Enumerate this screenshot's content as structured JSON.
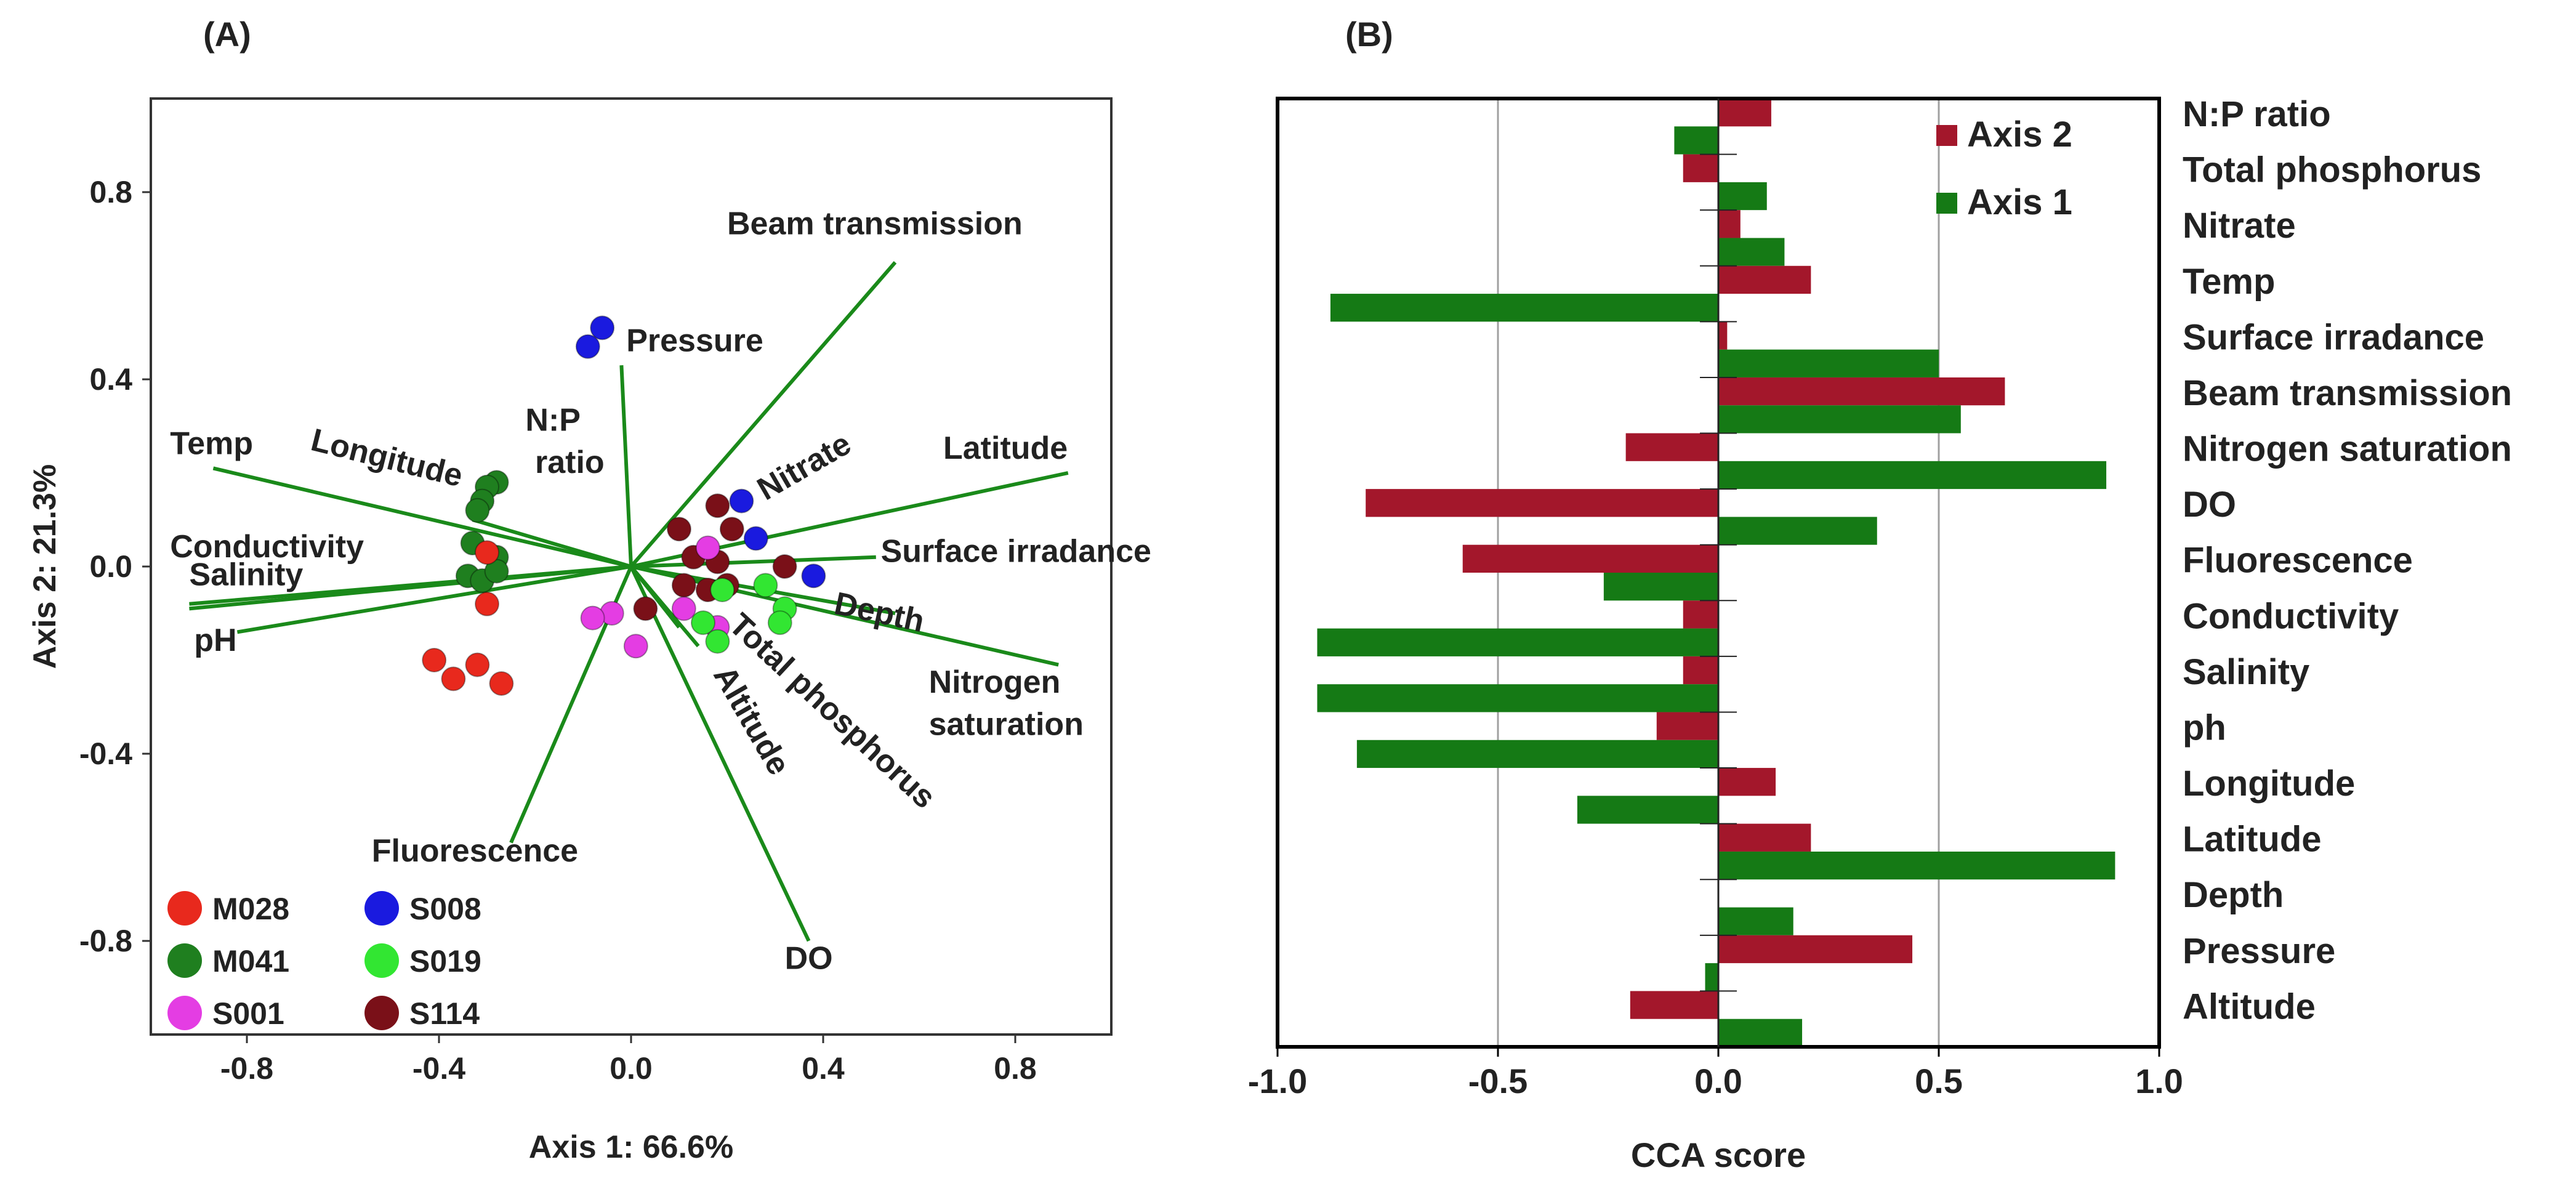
{
  "colors": {
    "arrow": "#1a8a1a",
    "axis1": "#157a15",
    "axis2": "#a3172b",
    "gridline": "#a0a0a0",
    "M028": "#e8291d",
    "M041": "#1f7f1f",
    "S001": "#e43de3",
    "S008": "#1a1adf",
    "S019": "#32e632",
    "S114": "#7a1018"
  },
  "chart_data": [
    {
      "panel_label": "(A)",
      "type": "scatter",
      "subtype": "CCA biplot",
      "xlabel": "Axis 1: 66.6%",
      "ylabel": "Axis 2: 21.3%",
      "xlim": [
        -1.0,
        1.0
      ],
      "ylim": [
        -1.0,
        1.0
      ],
      "xticks": [
        -0.8,
        -0.4,
        0.0,
        0.4,
        0.8
      ],
      "xtick_labels": [
        "-0.8",
        "-0.4",
        "0.0",
        "0.4",
        "0.8"
      ],
      "yticks": [
        -0.8,
        -0.4,
        0.0,
        0.4,
        0.8
      ],
      "ytick_labels": [
        "-0.8",
        "-0.4",
        "0.0",
        "0.4",
        "0.8"
      ],
      "legend": [
        {
          "key": "M028",
          "label": "M028"
        },
        {
          "key": "M041",
          "label": "M041"
        },
        {
          "key": "S001",
          "label": "S001"
        },
        {
          "key": "S008",
          "label": "S008"
        },
        {
          "key": "S019",
          "label": "S019"
        },
        {
          "key": "S114",
          "label": "S114"
        }
      ],
      "vectors": [
        {
          "name": "beam-transmission",
          "x": 0.55,
          "y": 0.65
        },
        {
          "name": "pressure",
          "x": -0.02,
          "y": 0.43
        },
        {
          "name": "latitude",
          "x": 0.91,
          "y": 0.2
        },
        {
          "name": "surface-irradance",
          "x": 0.51,
          "y": 0.02
        },
        {
          "name": "depth",
          "x": 0.55,
          "y": -0.1
        },
        {
          "name": "nitrogen-saturation",
          "x": 0.89,
          "y": -0.21
        },
        {
          "name": "total-phosphorus",
          "x": 0.14,
          "y": -0.17
        },
        {
          "name": "altitude",
          "x": 0.1,
          "y": -0.13
        },
        {
          "name": "do",
          "x": 0.37,
          "y": -0.8
        },
        {
          "name": "fluorescence",
          "x": -0.25,
          "y": -0.59
        },
        {
          "name": "temp",
          "x": -0.87,
          "y": 0.21
        },
        {
          "name": "longitude",
          "x": -0.33,
          "y": 0.1
        },
        {
          "name": "conductivity",
          "x": -0.92,
          "y": -0.08
        },
        {
          "name": "salinity",
          "x": -0.92,
          "y": -0.09
        },
        {
          "name": "ph",
          "x": -0.82,
          "y": -0.14
        }
      ],
      "vector_labels": [
        {
          "name": "beam-transmission",
          "text": "Beam transmission",
          "x": 0.2,
          "y": 0.71,
          "anchor": "start",
          "rotate": 0
        },
        {
          "name": "pressure",
          "text": "Pressure",
          "x": -0.01,
          "y": 0.46,
          "anchor": "start",
          "rotate": 0
        },
        {
          "name": "np-ratio-line1",
          "text": "N:P",
          "x": -0.22,
          "y": 0.29,
          "anchor": "start",
          "rotate": 0
        },
        {
          "name": "np-ratio-line2",
          "text": "ratio",
          "x": -0.2,
          "y": 0.2,
          "anchor": "start",
          "rotate": 0
        },
        {
          "name": "nitrate",
          "text": "Nitrate",
          "x": 0.28,
          "y": 0.14,
          "anchor": "start",
          "rotate": -30
        },
        {
          "name": "latitude",
          "text": "Latitude",
          "x": 0.65,
          "y": 0.23,
          "anchor": "start",
          "rotate": 0
        },
        {
          "name": "surface-irradance",
          "text": "Surface irradance",
          "x": 0.52,
          "y": 0.01,
          "anchor": "start",
          "rotate": 0
        },
        {
          "name": "depth",
          "text": "Depth",
          "x": 0.42,
          "y": -0.1,
          "anchor": "start",
          "rotate": 12
        },
        {
          "name": "nitrogen-saturation-line1",
          "text": "Nitrogen",
          "x": 0.62,
          "y": -0.27,
          "anchor": "start",
          "rotate": 0
        },
        {
          "name": "nitrogen-saturation-line2",
          "text": "saturation",
          "x": 0.62,
          "y": -0.36,
          "anchor": "start",
          "rotate": 0
        },
        {
          "name": "total-phosphorus",
          "text": "Total phosphorus",
          "x": 0.2,
          "y": -0.13,
          "anchor": "start",
          "rotate": 43
        },
        {
          "name": "altitude",
          "text": "Altitude",
          "x": 0.17,
          "y": -0.23,
          "anchor": "start",
          "rotate": 60
        },
        {
          "name": "do",
          "text": "DO",
          "x": 0.32,
          "y": -0.86,
          "anchor": "start",
          "rotate": 0
        },
        {
          "name": "fluorescence",
          "text": "Fluorescence",
          "x": -0.54,
          "y": -0.63,
          "anchor": "start",
          "rotate": 0
        },
        {
          "name": "temp",
          "text": "Temp",
          "x": -0.96,
          "y": 0.24,
          "anchor": "start",
          "rotate": 0
        },
        {
          "name": "longitude",
          "text": "Longitude",
          "x": -0.67,
          "y": 0.25,
          "anchor": "start",
          "rotate": 14
        },
        {
          "name": "conductivity",
          "text": "Conductivity",
          "x": -0.96,
          "y": 0.02,
          "anchor": "start",
          "rotate": 0
        },
        {
          "name": "salinity",
          "text": "Salinity",
          "x": -0.92,
          "y": -0.04,
          "anchor": "start",
          "rotate": 0
        },
        {
          "name": "ph",
          "text": "pH",
          "x": -0.91,
          "y": -0.18,
          "anchor": "start",
          "rotate": 0
        }
      ],
      "points": [
        {
          "group": "S008",
          "x": -0.06,
          "y": 0.51
        },
        {
          "group": "S008",
          "x": -0.09,
          "y": 0.47
        },
        {
          "group": "S008",
          "x": 0.23,
          "y": 0.14
        },
        {
          "group": "S008",
          "x": 0.26,
          "y": 0.06
        },
        {
          "group": "S008",
          "x": 0.38,
          "y": -0.02
        },
        {
          "group": "M041",
          "x": -0.28,
          "y": 0.18
        },
        {
          "group": "M041",
          "x": -0.3,
          "y": 0.17
        },
        {
          "group": "M041",
          "x": -0.31,
          "y": 0.14
        },
        {
          "group": "M041",
          "x": -0.32,
          "y": 0.12
        },
        {
          "group": "M041",
          "x": -0.33,
          "y": 0.05
        },
        {
          "group": "M041",
          "x": -0.28,
          "y": 0.02
        },
        {
          "group": "M041",
          "x": -0.34,
          "y": -0.02
        },
        {
          "group": "M041",
          "x": -0.31,
          "y": -0.03
        },
        {
          "group": "M041",
          "x": -0.28,
          "y": -0.01
        },
        {
          "group": "M028",
          "x": -0.3,
          "y": 0.03
        },
        {
          "group": "M028",
          "x": -0.3,
          "y": -0.08
        },
        {
          "group": "M028",
          "x": -0.41,
          "y": -0.2
        },
        {
          "group": "M028",
          "x": -0.37,
          "y": -0.24
        },
        {
          "group": "M028",
          "x": -0.32,
          "y": -0.21
        },
        {
          "group": "M028",
          "x": -0.27,
          "y": -0.25
        },
        {
          "group": "S114",
          "x": 0.1,
          "y": 0.08
        },
        {
          "group": "S114",
          "x": 0.18,
          "y": 0.13
        },
        {
          "group": "S114",
          "x": 0.21,
          "y": 0.08
        },
        {
          "group": "S114",
          "x": 0.13,
          "y": 0.02
        },
        {
          "group": "S114",
          "x": 0.18,
          "y": 0.01
        },
        {
          "group": "S114",
          "x": 0.11,
          "y": -0.04
        },
        {
          "group": "S114",
          "x": 0.16,
          "y": -0.05
        },
        {
          "group": "S114",
          "x": 0.2,
          "y": -0.04
        },
        {
          "group": "S114",
          "x": 0.32,
          "y": 0.0
        },
        {
          "group": "S114",
          "x": 0.03,
          "y": -0.09
        },
        {
          "group": "S001",
          "x": 0.16,
          "y": 0.04
        },
        {
          "group": "S001",
          "x": 0.11,
          "y": -0.09
        },
        {
          "group": "S001",
          "x": -0.04,
          "y": -0.1
        },
        {
          "group": "S001",
          "x": -0.08,
          "y": -0.11
        },
        {
          "group": "S001",
          "x": 0.01,
          "y": -0.17
        },
        {
          "group": "S001",
          "x": 0.18,
          "y": -0.13
        },
        {
          "group": "S019",
          "x": 0.19,
          "y": -0.05
        },
        {
          "group": "S019",
          "x": 0.28,
          "y": -0.04
        },
        {
          "group": "S019",
          "x": 0.32,
          "y": -0.09
        },
        {
          "group": "S019",
          "x": 0.31,
          "y": -0.12
        },
        {
          "group": "S019",
          "x": 0.15,
          "y": -0.12
        },
        {
          "group": "S019",
          "x": 0.18,
          "y": -0.16
        }
      ]
    },
    {
      "panel_label": "(B)",
      "type": "bar",
      "orientation": "horizontal",
      "xlabel": "CCA score",
      "xlim": [
        -1.0,
        1.0
      ],
      "xticks": [
        -1.0,
        -0.5,
        0.0,
        0.5,
        1.0
      ],
      "xtick_labels": [
        "-1.0",
        "-0.5",
        "0.0",
        "0.5",
        "1.0"
      ],
      "gridlines_x": [
        -0.5,
        0.5
      ],
      "categories": [
        "N:P ratio",
        "Total phosphorus",
        "Nitrate",
        "Temp",
        "Surface irradance",
        "Beam transmission",
        "Nitrogen saturation",
        "DO",
        "Fluorescence",
        "Conductivity",
        "Salinity",
        "ph",
        "Longitude",
        "Latitude",
        "Depth",
        "Pressure",
        "Altitude"
      ],
      "series": [
        {
          "name": "Axis 2",
          "values": [
            0.12,
            -0.08,
            0.05,
            0.21,
            0.02,
            0.65,
            -0.21,
            -0.8,
            -0.58,
            -0.08,
            -0.08,
            -0.14,
            0.13,
            0.21,
            0.0,
            0.44,
            -0.2
          ]
        },
        {
          "name": "Axis 1",
          "values": [
            -0.1,
            0.11,
            0.15,
            -0.88,
            0.5,
            0.55,
            0.88,
            0.36,
            -0.26,
            -0.91,
            -0.91,
            -0.82,
            -0.32,
            0.9,
            0.17,
            -0.03,
            0.19
          ]
        }
      ],
      "legend": [
        "Axis 2",
        "Axis 1"
      ]
    }
  ]
}
